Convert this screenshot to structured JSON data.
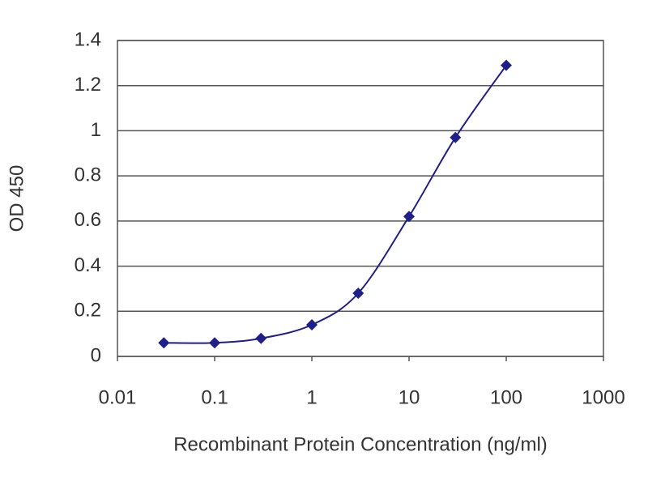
{
  "chart_data": {
    "type": "line",
    "x_scale": "log",
    "x_label": "Recombinant Protein Concentration (ng/ml)",
    "y_label": "OD 450",
    "x": [
      0.03,
      0.1,
      0.3,
      1,
      3,
      10,
      30,
      100
    ],
    "series": [
      {
        "color": "#1f1f8a",
        "values": [
          0.06,
          0.06,
          0.08,
          0.14,
          0.28,
          0.62,
          0.97,
          1.29
        ]
      }
    ],
    "xlim": [
      0.01,
      1000
    ],
    "xticks": [
      0.01,
      0.1,
      1,
      10,
      100,
      1000
    ],
    "ylim": [
      0,
      1.4
    ],
    "yticks": [
      0,
      0.2,
      0.4,
      0.6,
      0.8,
      1,
      1.2,
      1.4
    ],
    "grid": true
  }
}
